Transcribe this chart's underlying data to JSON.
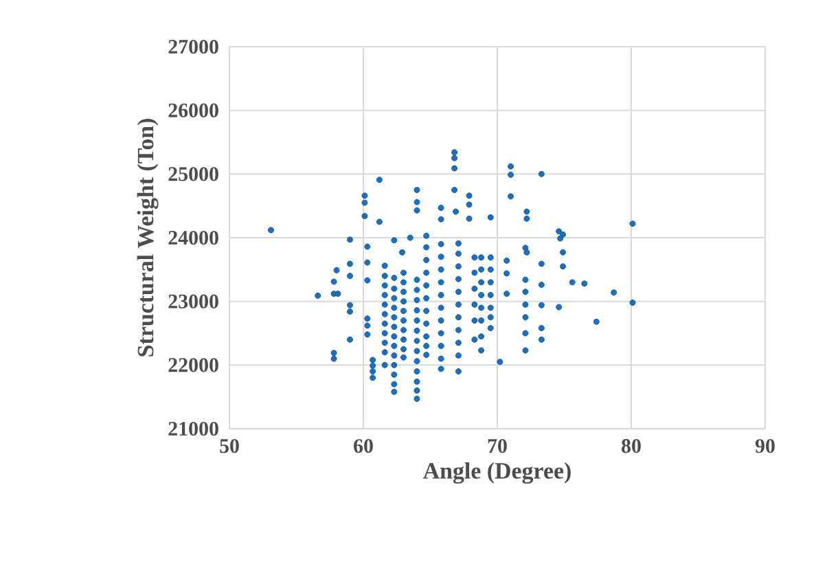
{
  "chart_data": {
    "type": "scatter",
    "xlabel": "Angle (Degree)",
    "ylabel": "Structural Weight (Ton)",
    "xlim": [
      50,
      90
    ],
    "xticks": [
      50,
      60,
      70,
      80,
      90
    ],
    "ylim": [
      21000,
      27000
    ],
    "yticks": [
      21000,
      22000,
      23000,
      24000,
      25000,
      26000,
      27000
    ],
    "grid": true,
    "color": "#1a6fbe",
    "x": [
      53.1,
      61.2,
      60.1,
      60.1,
      60.1,
      61.2,
      59.0,
      60.3,
      58.0,
      59.0,
      59.0,
      60.3,
      57.8,
      57.8,
      58.1,
      56.6,
      60.3,
      59.0,
      59.0,
      60.3,
      60.3,
      60.3,
      59.0,
      57.8,
      57.8,
      60.7,
      60.7,
      60.7,
      60.7,
      61.6,
      61.6,
      61.6,
      61.6,
      61.6,
      61.6,
      61.6,
      61.6,
      61.6,
      61.6,
      61.6,
      62.3,
      62.3,
      62.3,
      62.3,
      62.3,
      62.3,
      62.3,
      62.3,
      62.3,
      62.3,
      62.3,
      62.3,
      62.3,
      62.3,
      63.0,
      63.0,
      63.0,
      63.0,
      63.0,
      63.0,
      63.0,
      63.0,
      63.0,
      63.0,
      63.5,
      62.9,
      64.0,
      64.0,
      64.0,
      64.0,
      64.0,
      64.0,
      64.0,
      64.0,
      64.0,
      64.0,
      64.0,
      64.0,
      64.0,
      64.0,
      64.0,
      64.0,
      64.7,
      64.7,
      64.7,
      64.7,
      64.7,
      64.7,
      64.7,
      64.7,
      64.7,
      64.7,
      64.7,
      65.8,
      65.8,
      65.8,
      65.8,
      65.8,
      65.8,
      65.8,
      65.8,
      65.8,
      65.8,
      65.8,
      65.8,
      65.8,
      66.8,
      66.8,
      66.8,
      66.8,
      66.9,
      67.1,
      67.1,
      67.1,
      67.1,
      67.1,
      67.1,
      67.1,
      67.1,
      67.1,
      67.1,
      67.1,
      67.9,
      67.9,
      67.9,
      68.3,
      68.3,
      68.3,
      68.3,
      68.3,
      68.3,
      68.8,
      68.8,
      68.8,
      68.8,
      68.8,
      68.8,
      68.8,
      68.8,
      69.5,
      69.5,
      69.5,
      69.5,
      69.5,
      69.5,
      69.5,
      69.5,
      70.2,
      70.7,
      70.7,
      70.7,
      71.0,
      71.0,
      71.0,
      73.3,
      72.2,
      72.2,
      72.1,
      72.2,
      72.1,
      72.1,
      72.1,
      72.1,
      72.1,
      72.1,
      73.3,
      73.3,
      73.3,
      73.3,
      73.3,
      74.6,
      74.9,
      74.7,
      74.9,
      74.9,
      75.6,
      76.5,
      74.6,
      77.4,
      78.7,
      80.1,
      80.1
    ],
    "values": [
      24120,
      24910,
      24660,
      24550,
      24340,
      24250,
      23970,
      23860,
      23490,
      23590,
      23400,
      23610,
      23310,
      23120,
      23120,
      23090,
      23330,
      22940,
      22840,
      22730,
      22620,
      22480,
      22400,
      22190,
      22100,
      22080,
      21990,
      21900,
      21800,
      23560,
      23400,
      23250,
      23100,
      22950,
      22800,
      22650,
      22500,
      22350,
      22200,
      22000,
      23960,
      23370,
      23200,
      23050,
      22900,
      22750,
      22600,
      22450,
      22300,
      22150,
      22000,
      21850,
      21700,
      21580,
      23450,
      23300,
      23150,
      23000,
      22850,
      22700,
      22550,
      22400,
      22250,
      22120,
      24000,
      23770,
      24750,
      24560,
      24430,
      23340,
      23180,
      23020,
      22860,
      22700,
      22540,
      22380,
      22220,
      22060,
      21900,
      21740,
      21600,
      21470,
      24030,
      23850,
      23650,
      23450,
      23250,
      23050,
      22850,
      22650,
      22450,
      22300,
      22160,
      24470,
      24290,
      23900,
      23700,
      23500,
      23300,
      23100,
      22900,
      22700,
      22500,
      22300,
      22100,
      21940,
      25340,
      25250,
      25090,
      24750,
      24410,
      23910,
      23750,
      23550,
      23350,
      23150,
      22950,
      22750,
      22550,
      22350,
      22150,
      21900,
      24660,
      24520,
      24300,
      23690,
      23450,
      23200,
      22950,
      22700,
      22400,
      23690,
      23500,
      23300,
      23100,
      22900,
      22700,
      22450,
      22230,
      24320,
      23690,
      23500,
      23300,
      23100,
      22900,
      22750,
      22580,
      22050,
      23640,
      23440,
      23120,
      25120,
      24990,
      24650,
      25000,
      24410,
      24300,
      23840,
      23770,
      23340,
      23150,
      22950,
      22750,
      22500,
      22230,
      23590,
      23260,
      22940,
      22580,
      22400,
      24100,
      24050,
      23990,
      23770,
      23550,
      23300,
      23280,
      22910,
      22680,
      23140,
      24220,
      22980
    ]
  }
}
